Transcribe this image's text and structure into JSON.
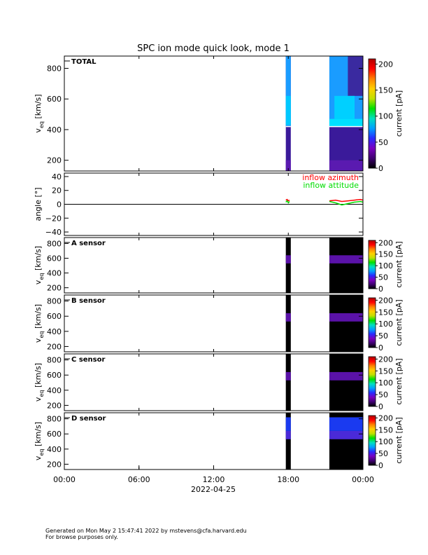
{
  "title": "SPC ion mode quick look, mode 1",
  "date_label": "2022-04-25",
  "footer": {
    "line1": "Generated on Mon May  2 15:47:41 2022 by mstevens@cfa.harvard.edu",
    "line2": "For browse purposes only."
  },
  "colors": {
    "colorbar_stops": [
      "#000000",
      "#3f0070",
      "#7a00c0",
      "#2a2aff",
      "#00a0ff",
      "#00e0c0",
      "#00e000",
      "#c0e000",
      "#ffd000",
      "#ff8000",
      "#ff0000",
      "#b00000"
    ],
    "azimuth": "#ff0000",
    "attitude": "#00dd00"
  },
  "chart_data": {
    "type": "heatmap",
    "x_ticks": [
      "00:00",
      "06:00",
      "12:00",
      "18:00",
      "00:00"
    ],
    "x_hours": [
      0,
      6,
      12,
      18,
      24
    ],
    "data_intervals_hours": [
      [
        17.8,
        18.2
      ],
      [
        21.3,
        24.0
      ]
    ],
    "panels": [
      {
        "name": "TOTAL",
        "ylabel": "v",
        "ylabel_sub": "eq",
        "ylabel_unit": "[km/s]",
        "ylim": [
          130,
          880
        ],
        "yticks": [
          200,
          400,
          600,
          800
        ],
        "yticklabels": [
          "200",
          "400",
          "600",
          "800"
        ],
        "colorbar_label": "current [pA]",
        "colorbar_ticks": [
          "0",
          "50",
          "100",
          "150",
          "200"
        ],
        "colorbar_values": [
          0,
          50,
          100,
          150,
          200
        ]
      },
      {
        "name": "angle",
        "ylabel": "angle [°]",
        "ylim": [
          -45,
          45
        ],
        "yticks": [
          -40,
          -20,
          0,
          20,
          40
        ],
        "yticklabels": [
          "−40",
          "−20",
          "0",
          "20",
          "40"
        ],
        "legend": [
          "inflow azimuth",
          "inflow attitude"
        ],
        "series": [
          {
            "name": "inflow azimuth",
            "x": [
              17.8,
              17.9,
              18.0,
              18.1,
              21.3,
              21.8,
              22.3,
              22.8,
              23.3,
              23.8,
              24.0
            ],
            "y": [
              6,
              7,
              5,
              6,
              5,
              6,
              4,
              5,
              6,
              7,
              6
            ]
          },
          {
            "name": "inflow attitude",
            "x": [
              17.8,
              17.9,
              18.0,
              18.1,
              21.3,
              21.8,
              22.3,
              22.8,
              23.3,
              23.8,
              24.0
            ],
            "y": [
              3,
              5,
              2,
              4,
              4,
              2,
              -1,
              1,
              3,
              4,
              3
            ]
          }
        ]
      },
      {
        "name": "A sensor",
        "ylabel": "v",
        "ylabel_sub": "eq",
        "ylabel_unit": "[km/s]",
        "ylim": [
          130,
          880
        ],
        "yticks": [
          200,
          400,
          600,
          800
        ],
        "yticklabels": [
          "200",
          "400",
          "600",
          "800"
        ],
        "colorbar_label": "current [pA]",
        "colorbar_ticks": [
          "0",
          "50",
          "100",
          "150",
          "200"
        ],
        "colorbar_values": [
          0,
          50,
          100,
          150,
          200
        ]
      },
      {
        "name": "B sensor",
        "ylabel": "v",
        "ylabel_sub": "eq",
        "ylabel_unit": "[km/s]",
        "ylim": [
          130,
          880
        ],
        "yticks": [
          200,
          400,
          600,
          800
        ],
        "yticklabels": [
          "200",
          "400",
          "600",
          "800"
        ],
        "colorbar_label": "current [pA]",
        "colorbar_ticks": [
          "0",
          "50",
          "100",
          "150",
          "200"
        ],
        "colorbar_values": [
          0,
          50,
          100,
          150,
          200
        ]
      },
      {
        "name": "C sensor",
        "ylabel": "v",
        "ylabel_sub": "eq",
        "ylabel_unit": "[km/s]",
        "ylim": [
          130,
          880
        ],
        "yticks": [
          200,
          400,
          600,
          800
        ],
        "yticklabels": [
          "200",
          "400",
          "600",
          "800"
        ],
        "colorbar_label": "current [pA]",
        "colorbar_ticks": [
          "0",
          "50",
          "100",
          "150",
          "200"
        ],
        "colorbar_values": [
          0,
          50,
          100,
          150,
          200
        ]
      },
      {
        "name": "D sensor",
        "ylabel": "v",
        "ylabel_sub": "eq",
        "ylabel_unit": "[km/s]",
        "ylim": [
          130,
          880
        ],
        "yticks": [
          200,
          400,
          600,
          800
        ],
        "yticklabels": [
          "200",
          "400",
          "600",
          "800"
        ],
        "colorbar_label": "current [pA]",
        "colorbar_ticks": [
          "0",
          "50",
          "100",
          "150",
          "200"
        ],
        "colorbar_values": [
          0,
          50,
          100,
          150,
          200
        ]
      }
    ]
  }
}
